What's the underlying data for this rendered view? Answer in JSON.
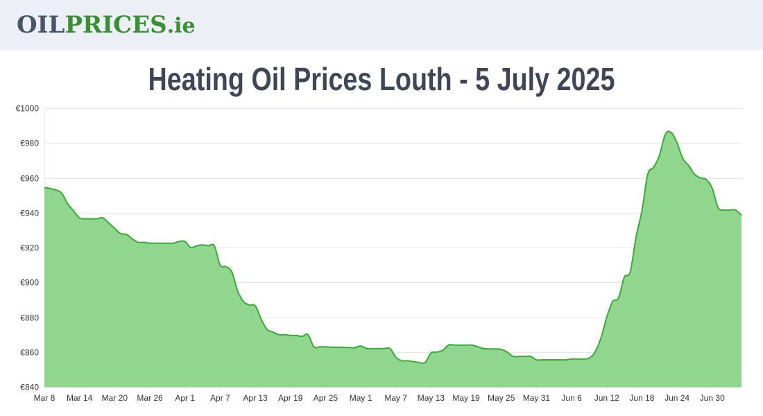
{
  "header": {
    "logo_oil": "OIL",
    "logo_prices": "PRICES",
    "logo_ie": ".ie"
  },
  "page": {
    "title": "Heating Oil Prices Louth - 5 July 2025"
  },
  "colors": {
    "line": "#3aa935",
    "fill": "#90d68f",
    "grid": "#e6e6e6",
    "logo_gray": "#4a5568",
    "logo_green": "#3a8f35"
  },
  "chart_data": {
    "type": "area",
    "title": "Heating Oil Prices Louth - 5 July 2025",
    "xlabel": "",
    "ylabel": "",
    "ylim": [
      840,
      1000
    ],
    "y_ticks": [
      840,
      860,
      880,
      900,
      920,
      940,
      960,
      980,
      1000
    ],
    "y_tick_labels": [
      "€840",
      "€860",
      "€880",
      "€900",
      "€920",
      "€940",
      "€960",
      "€980",
      "€1000"
    ],
    "x_tick_labels": [
      "Mar 8",
      "Mar 14",
      "Mar 20",
      "Mar 26",
      "Apr 1",
      "Apr 7",
      "Apr 13",
      "Apr 19",
      "Apr 25",
      "May 1",
      "May 7",
      "May 13",
      "May 19",
      "May 25",
      "May 31",
      "Jun 6",
      "Jun 12",
      "Jun 18",
      "Jun 24",
      "Jun 30"
    ],
    "x_tick_days": [
      0,
      6,
      12,
      18,
      24,
      30,
      36,
      42,
      48,
      54,
      60,
      66,
      72,
      78,
      84,
      90,
      96,
      102,
      108,
      114
    ],
    "x_range_days": [
      0,
      119
    ],
    "grid": true,
    "legend": "none",
    "series": [
      {
        "name": "Louth",
        "points": [
          [
            0,
            954.5
          ],
          [
            2,
            953
          ],
          [
            3,
            951
          ],
          [
            4,
            945
          ],
          [
            5,
            941
          ],
          [
            6,
            937
          ],
          [
            7,
            936.5
          ],
          [
            8,
            936.5
          ],
          [
            9,
            936.5
          ],
          [
            10,
            937
          ],
          [
            11,
            934
          ],
          [
            12,
            931
          ],
          [
            13,
            928
          ],
          [
            14,
            927.5
          ],
          [
            15,
            925
          ],
          [
            16,
            923
          ],
          [
            17,
            923
          ],
          [
            18,
            922.5
          ],
          [
            19,
            922.5
          ],
          [
            20,
            922.5
          ],
          [
            21,
            922.5
          ],
          [
            22,
            922.5
          ],
          [
            23,
            923.5
          ],
          [
            24,
            923.5
          ],
          [
            25,
            920
          ],
          [
            26,
            921
          ],
          [
            27,
            921.5
          ],
          [
            28,
            921
          ],
          [
            29,
            921
          ],
          [
            30,
            910
          ],
          [
            31,
            909
          ],
          [
            32,
            906
          ],
          [
            33,
            895
          ],
          [
            34,
            889
          ],
          [
            35,
            887
          ],
          [
            36,
            886.5
          ],
          [
            37,
            879
          ],
          [
            38,
            873
          ],
          [
            39,
            871.5
          ],
          [
            40,
            870
          ],
          [
            41,
            870
          ],
          [
            42,
            869.5
          ],
          [
            43,
            869.5
          ],
          [
            44,
            869
          ],
          [
            45,
            870
          ],
          [
            46,
            863
          ],
          [
            47,
            863
          ],
          [
            48,
            863
          ],
          [
            49,
            862.8
          ],
          [
            50,
            862.8
          ],
          [
            51,
            862.7
          ],
          [
            52,
            862.6
          ],
          [
            53,
            862.5
          ],
          [
            54,
            863.5
          ],
          [
            55,
            862
          ],
          [
            56,
            862
          ],
          [
            57,
            862
          ],
          [
            58,
            862
          ],
          [
            59,
            862
          ],
          [
            60,
            857
          ],
          [
            61,
            855
          ],
          [
            62,
            855
          ],
          [
            63,
            854.5
          ],
          [
            64,
            854
          ],
          [
            65,
            854
          ],
          [
            66,
            859.5
          ],
          [
            67,
            860
          ],
          [
            68,
            861
          ],
          [
            69,
            864
          ],
          [
            70,
            864
          ],
          [
            71,
            864
          ],
          [
            72,
            864
          ],
          [
            73,
            864
          ],
          [
            74,
            863
          ],
          [
            75,
            862
          ],
          [
            76,
            861.8
          ],
          [
            77,
            861.8
          ],
          [
            78,
            861.5
          ],
          [
            79,
            860
          ],
          [
            80,
            857.5
          ],
          [
            81,
            857.5
          ],
          [
            82,
            857.5
          ],
          [
            83,
            857.5
          ],
          [
            84,
            855.5
          ],
          [
            85,
            855.5
          ],
          [
            86,
            855.5
          ],
          [
            87,
            855.5
          ],
          [
            88,
            855.5
          ],
          [
            89,
            855.5
          ],
          [
            90,
            856
          ],
          [
            91,
            856
          ],
          [
            92,
            856
          ],
          [
            93,
            856.5
          ],
          [
            94,
            860
          ],
          [
            95,
            868
          ],
          [
            96,
            880
          ],
          [
            97,
            889
          ],
          [
            98,
            891
          ],
          [
            99,
            903
          ],
          [
            100,
            906
          ],
          [
            101,
            926
          ],
          [
            102,
            941
          ],
          [
            103,
            962
          ],
          [
            104,
            966
          ],
          [
            105,
            973
          ],
          [
            106,
            985
          ],
          [
            107,
            986
          ],
          [
            108,
            980
          ],
          [
            109,
            971
          ],
          [
            110,
            967
          ],
          [
            111,
            962
          ],
          [
            112,
            960
          ],
          [
            113,
            959
          ],
          [
            114,
            954
          ],
          [
            115,
            943
          ],
          [
            116,
            941.5
          ],
          [
            117,
            941.5
          ],
          [
            118,
            941.5
          ],
          [
            119,
            938.5
          ]
        ]
      }
    ]
  }
}
